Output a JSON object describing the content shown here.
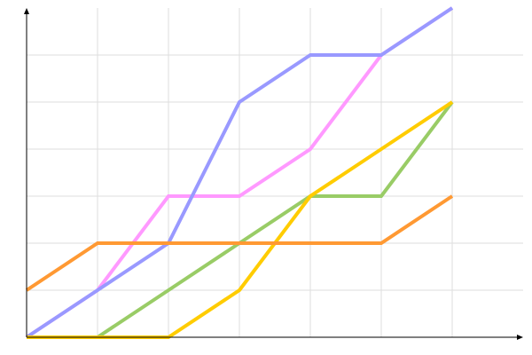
{
  "chart_data": {
    "type": "line",
    "title": "",
    "xlabel": "",
    "ylabel": "",
    "x": [
      0,
      1,
      2,
      3,
      4,
      5,
      6
    ],
    "xlim": [
      0,
      7
    ],
    "ylim": [
      0,
      7
    ],
    "grid": true,
    "series": [
      {
        "color": "#ff99ff",
        "values": [
          0,
          1,
          3,
          3,
          4,
          6,
          7
        ]
      },
      {
        "color": "#9999ff",
        "values": [
          0,
          1,
          2,
          5,
          6,
          6,
          7
        ]
      },
      {
        "color": "#99cc66",
        "values": [
          0,
          0,
          1,
          2,
          3,
          3,
          5
        ]
      },
      {
        "color": "#ffcc00",
        "values": [
          0,
          0,
          0,
          1,
          3,
          4,
          5
        ]
      },
      {
        "color": "#ff9933",
        "values": [
          1,
          2,
          2,
          2,
          2,
          2,
          3
        ]
      }
    ]
  }
}
